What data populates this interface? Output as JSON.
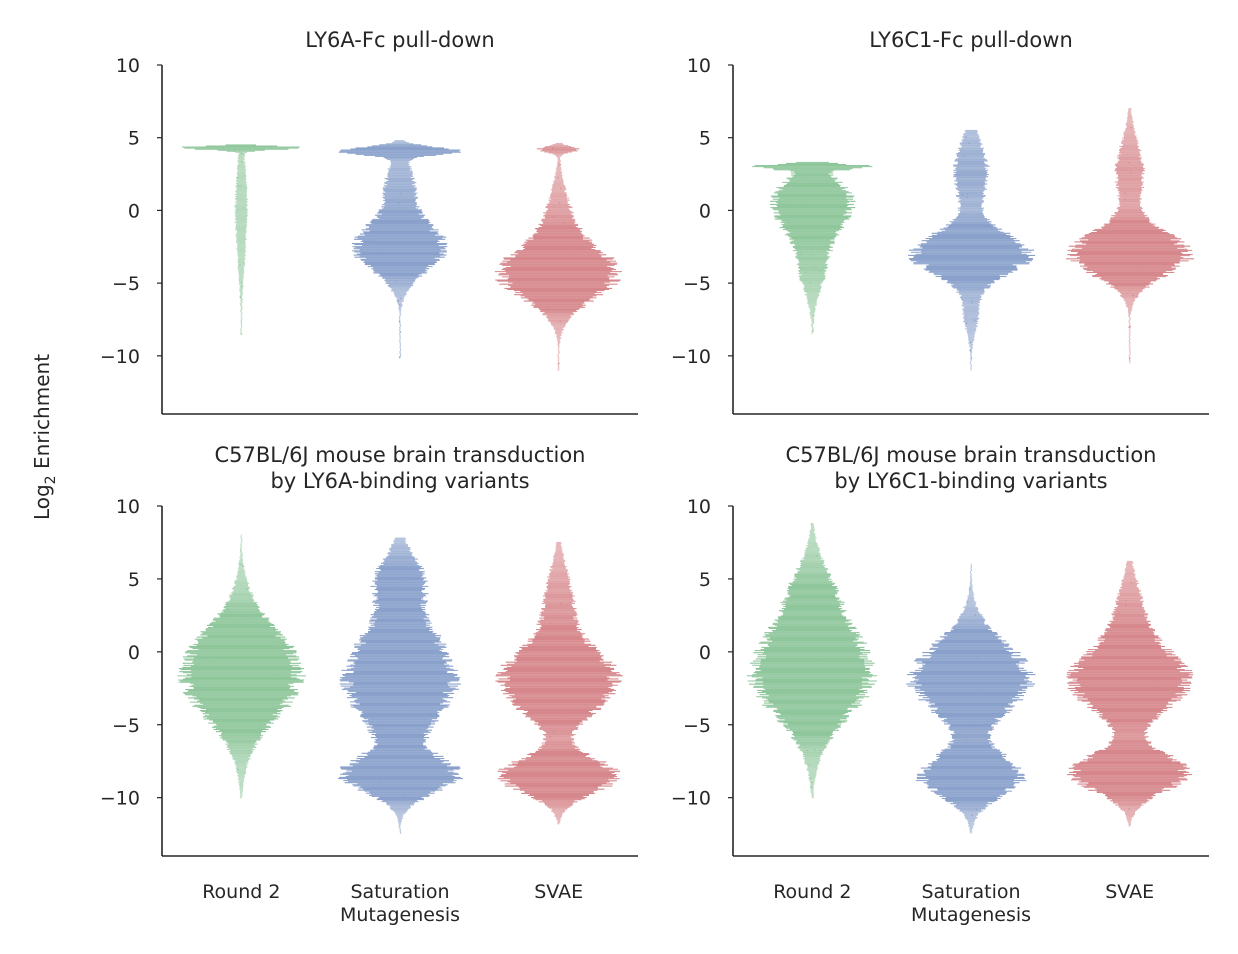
{
  "figure": {
    "ylabel_main": "Log",
    "ylabel_sub": "2",
    "ylabel_rest": " Enrichment"
  },
  "chart_data": [
    {
      "type": "swarm",
      "title": "LY6A-Fc pull-down",
      "title_lines": [
        "LY6A-Fc pull-down"
      ],
      "categories": [
        "Round 2",
        "Saturation\nMutagenesis",
        "SVAE"
      ],
      "show_xticklabels": false,
      "ylim": [
        -14,
        10
      ],
      "yticks": [
        10,
        5,
        0,
        -5,
        -10
      ],
      "ytick_labels": [
        "10",
        "5",
        "0",
        "−5",
        "−10"
      ],
      "series": [
        {
          "category": "Round 2",
          "color": "#8fc69b",
          "range": [
            -8.5,
            4.5
          ],
          "dist": [
            [
              4.3,
              0.12,
              1.0
            ],
            [
              0.0,
              3.2,
              0.08
            ]
          ]
        },
        {
          "category": "Saturation\nMutagenesis",
          "color": "#8aa1cb",
          "range": [
            -10.2,
            4.8
          ],
          "dist": [
            [
              4.1,
              0.25,
              0.9
            ],
            [
              -2.6,
              1.5,
              0.7
            ],
            [
              1.5,
              1.8,
              0.2
            ]
          ]
        },
        {
          "category": "SVAE",
          "color": "#d6878b",
          "range": [
            -11,
            4.6
          ],
          "dist": [
            [
              4.2,
              0.2,
              0.3
            ],
            [
              -4.4,
              1.6,
              1.0
            ],
            [
              -1.0,
              2.0,
              0.2
            ]
          ]
        }
      ]
    },
    {
      "type": "swarm",
      "title": "LY6C1-Fc pull-down",
      "title_lines": [
        "LY6C1-Fc pull-down"
      ],
      "categories": [
        "Round 2",
        "Saturation\nMutagenesis",
        "SVAE"
      ],
      "show_xticklabels": false,
      "ylim": [
        -14,
        10
      ],
      "yticks": [
        10,
        5,
        0,
        -5,
        -10
      ],
      "ytick_labels": [
        "10",
        "5",
        "0",
        "−5",
        "−10"
      ],
      "series": [
        {
          "category": "Round 2",
          "color": "#8fc69b",
          "range": [
            -8.5,
            3.3
          ],
          "dist": [
            [
              3.0,
              0.15,
              1.0
            ],
            [
              0.5,
              1.6,
              0.8
            ],
            [
              -3.5,
              1.8,
              0.25
            ]
          ]
        },
        {
          "category": "Saturation\nMutagenesis",
          "color": "#8aa1cb",
          "range": [
            -11,
            5.5
          ],
          "dist": [
            [
              -3.0,
              1.3,
              1.0
            ],
            [
              2.5,
              2.0,
              0.25
            ],
            [
              -7.0,
              1.3,
              0.1
            ]
          ]
        },
        {
          "category": "SVAE",
          "color": "#d6878b",
          "range": [
            -10.5,
            7
          ],
          "dist": [
            [
              -3.0,
              1.4,
              1.0
            ],
            [
              2.5,
              2.0,
              0.2
            ]
          ]
        }
      ]
    },
    {
      "type": "swarm",
      "title": "C57BL/6J mouse brain transduction\nby LY6A-binding variants",
      "title_lines": [
        "C57BL/6J mouse brain transduction",
        "by LY6A-binding variants"
      ],
      "categories": [
        "Round 2",
        "Saturation\nMutagenesis",
        "SVAE"
      ],
      "show_xticklabels": true,
      "xticklabels_lines": [
        [
          "Round 2"
        ],
        [
          "Saturation",
          "Mutagenesis"
        ],
        [
          "SVAE"
        ]
      ],
      "ylim": [
        -14,
        10
      ],
      "yticks": [
        10,
        5,
        0,
        -5,
        -10
      ],
      "ytick_labels": [
        "10",
        "5",
        "0",
        "−5",
        "−10"
      ],
      "series": [
        {
          "category": "Round 2",
          "color": "#8fc69b",
          "range": [
            -10,
            8
          ],
          "dist": [
            [
              -1.5,
              2.8,
              1.0
            ]
          ]
        },
        {
          "category": "Saturation\nMutagenesis",
          "color": "#8aa1cb",
          "range": [
            -12.5,
            7.8
          ],
          "dist": [
            [
              -1.8,
              3.0,
              1.0
            ],
            [
              -8.5,
              1.1,
              1.0
            ],
            [
              5.0,
              1.5,
              0.35
            ]
          ]
        },
        {
          "category": "SVAE",
          "color": "#d6878b",
          "range": [
            -11.8,
            7.5
          ],
          "dist": [
            [
              -2.0,
              2.0,
              1.0
            ],
            [
              -8.5,
              1.1,
              1.0
            ],
            [
              3.5,
              2.0,
              0.2
            ]
          ]
        }
      ]
    },
    {
      "type": "swarm",
      "title": "C57BL/6J mouse brain transduction\nby LY6C1-binding variants",
      "title_lines": [
        "C57BL/6J mouse brain transduction",
        "by LY6C1-binding variants"
      ],
      "categories": [
        "Round 2",
        "Saturation\nMutagenesis",
        "SVAE"
      ],
      "show_xticklabels": true,
      "xticklabels_lines": [
        [
          "Round 2"
        ],
        [
          "Saturation",
          "Mutagenesis"
        ],
        [
          "SVAE"
        ]
      ],
      "ylim": [
        -14,
        10
      ],
      "yticks": [
        10,
        5,
        0,
        -5,
        -10
      ],
      "ytick_labels": [
        "10",
        "5",
        "0",
        "−5",
        "−10"
      ],
      "series": [
        {
          "category": "Round 2",
          "color": "#8fc69b",
          "range": [
            -10,
            8.8
          ],
          "dist": [
            [
              -1.5,
              2.8,
              1.0
            ],
            [
              4.0,
              2.0,
              0.25
            ]
          ]
        },
        {
          "category": "Saturation\nMutagenesis",
          "color": "#8aa1cb",
          "range": [
            -12.5,
            6
          ],
          "dist": [
            [
              -1.8,
              2.2,
              1.0
            ],
            [
              -8.5,
              1.3,
              0.85
            ]
          ]
        },
        {
          "category": "SVAE",
          "color": "#d6878b",
          "range": [
            -12,
            6.2
          ],
          "dist": [
            [
              -2.0,
              1.9,
              1.0
            ],
            [
              -8.3,
              1.2,
              1.0
            ],
            [
              2.5,
              2.0,
              0.2
            ]
          ]
        }
      ]
    }
  ]
}
